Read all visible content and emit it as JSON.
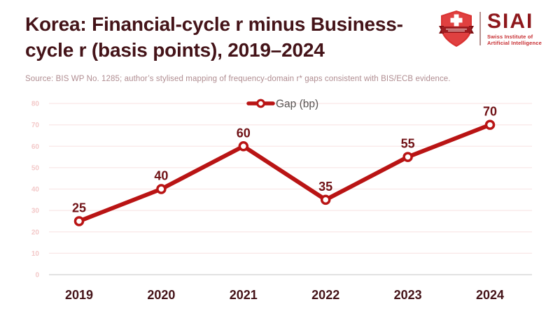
{
  "header": {
    "title_line1": "Korea: Financial-cycle r minus Business-",
    "title_line2": "cycle r (basis points), 2019–2024",
    "source": "Source: BIS WP No. 1285; author’s stylised mapping of frequency-domain r* gaps consistent with BIS/ECB evidence."
  },
  "logo": {
    "name": "SIAI",
    "subtitle_line1": "Swiss Institute of",
    "subtitle_line2": "Artificial Intelligence",
    "brand_color": "#8e181c",
    "subtitle_color": "#c62a2e",
    "shield_color": "#d93332",
    "banner_color": "#9e1b1f"
  },
  "chart_data": {
    "type": "line",
    "title": "Korea: Financial-cycle r minus Business-cycle r (basis points), 2019–2024",
    "categories": [
      "2019",
      "2020",
      "2021",
      "2022",
      "2023",
      "2024"
    ],
    "series": [
      {
        "name": "Gap (bp)",
        "values": [
          25,
          40,
          60,
          35,
          55,
          70
        ]
      }
    ],
    "legend": {
      "label": "Gap (bp)",
      "position": "top-center"
    },
    "ylim": [
      0,
      80
    ],
    "yticks": [
      0,
      10,
      20,
      30,
      40,
      50,
      60,
      70,
      80
    ],
    "grid": true,
    "data_labels": [
      25,
      40,
      60,
      35,
      55,
      70
    ],
    "colors": {
      "line": "#b91414",
      "marker_fill": "#ffffff",
      "data_label": "#701216",
      "axis_label": "#441318",
      "ytick_label": "#f3c9c9",
      "gridline": "#f9e7e7",
      "zero_line": "#cfcfcf",
      "legend_text": "#575352"
    }
  }
}
